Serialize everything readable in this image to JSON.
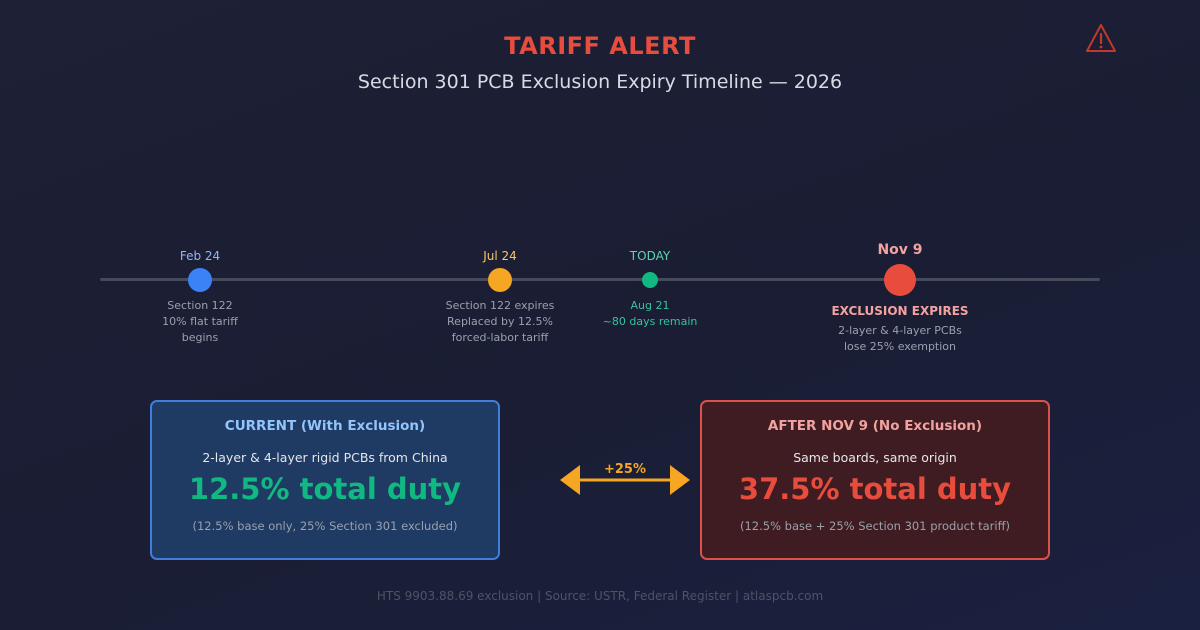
{
  "header": {
    "title": "TARIFF ALERT",
    "subtitle": "Section 301 PCB Exclusion Expiry Timeline — 2026",
    "alert_icon": "warning-triangle-icon"
  },
  "timeline": {
    "events": [
      {
        "date": "Feb 24",
        "lines": [
          "Section 122",
          "10% flat tariff",
          "begins"
        ],
        "color": "#3b82f6"
      },
      {
        "date": "Jul 24",
        "lines": [
          "Section 122 expires",
          "Replaced by 12.5%",
          "forced-labor tariff"
        ],
        "color": "#f5a623"
      },
      {
        "date": "TODAY",
        "lines": [
          "Aug 21",
          "~80 days remain"
        ],
        "color": "#10b981"
      },
      {
        "date": "Nov 9",
        "headline": "EXCLUSION EXPIRES",
        "lines": [
          "2-layer & 4-layer PCBs",
          "lose 25% exemption"
        ],
        "color": "#e74c3c"
      }
    ]
  },
  "comparison": {
    "current": {
      "title": "CURRENT (With Exclusion)",
      "subtitle": "2-layer & 4-layer rigid PCBs from China",
      "duty": "12.5% total duty",
      "note": "(12.5% base only, 25% Section 301 excluded)"
    },
    "delta": "+25%",
    "after": {
      "title": "AFTER NOV 9 (No Exclusion)",
      "subtitle": "Same boards, same origin",
      "duty": "37.5% total duty",
      "note": "(12.5% base + 25% Section 301 product tariff)"
    }
  },
  "footer": "HTS 9903.88.69 exclusion | Source: USTR, Federal Register | atlaspcb.com",
  "colors": {
    "alert": "#e74c3c",
    "current_title": "#93c5fd",
    "current_duty": "#10b981",
    "after_title": "#fca5a5",
    "after_duty": "#e74c3c",
    "delta": "#f5a623"
  }
}
